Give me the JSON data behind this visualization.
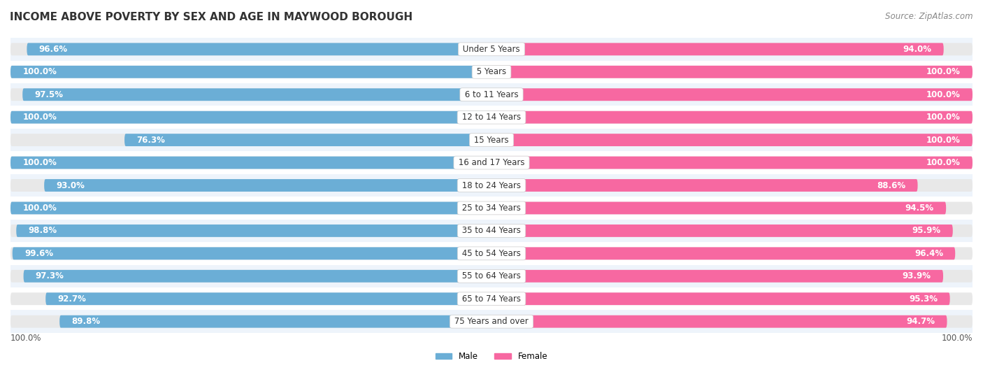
{
  "title": "INCOME ABOVE POVERTY BY SEX AND AGE IN MAYWOOD BOROUGH",
  "source": "Source: ZipAtlas.com",
  "categories": [
    "Under 5 Years",
    "5 Years",
    "6 to 11 Years",
    "12 to 14 Years",
    "15 Years",
    "16 and 17 Years",
    "18 to 24 Years",
    "25 to 34 Years",
    "35 to 44 Years",
    "45 to 54 Years",
    "55 to 64 Years",
    "65 to 74 Years",
    "75 Years and over"
  ],
  "male_values": [
    96.6,
    100.0,
    97.5,
    100.0,
    76.3,
    100.0,
    93.0,
    100.0,
    98.8,
    99.6,
    97.3,
    92.7,
    89.8
  ],
  "female_values": [
    94.0,
    100.0,
    100.0,
    100.0,
    100.0,
    100.0,
    88.6,
    94.5,
    95.9,
    96.4,
    93.9,
    95.3,
    94.7
  ],
  "male_color": "#6baed6",
  "female_color": "#f768a1",
  "male_color_light": "#bdd7ee",
  "female_color_light": "#fcc5dc",
  "male_label": "Male",
  "female_label": "Female",
  "bg_color": "#ffffff",
  "row_even_color": "#eef4fb",
  "row_odd_color": "#ffffff",
  "track_color": "#e8e8e8",
  "bar_height": 0.55,
  "title_fontsize": 11,
  "label_fontsize": 8.5,
  "value_fontsize": 8.5,
  "source_fontsize": 8.5,
  "xlabel_bottom_left": "100.0%",
  "xlabel_bottom_right": "100.0%"
}
